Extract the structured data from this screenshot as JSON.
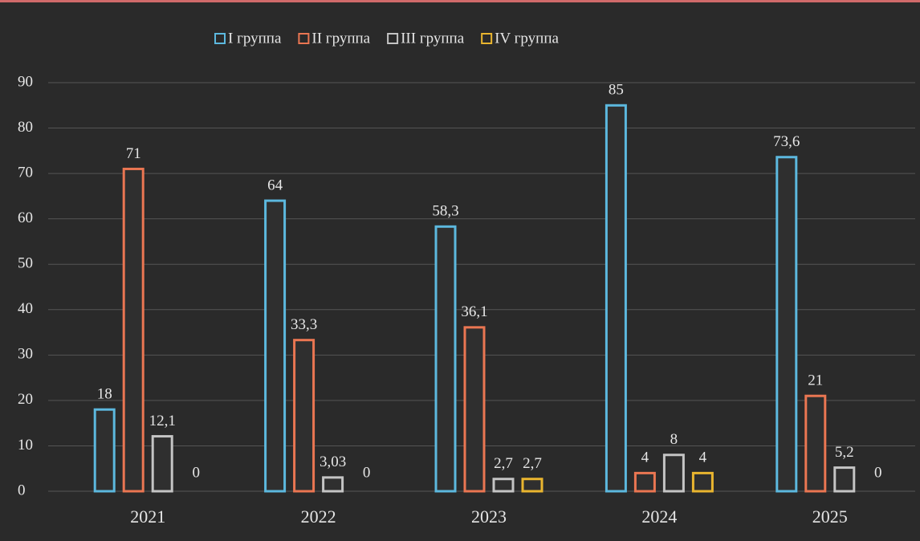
{
  "chart_data": {
    "type": "bar",
    "categories": [
      "2021",
      "2022",
      "2023",
      "2024",
      "2025"
    ],
    "series": [
      {
        "name": "I группа",
        "color": "#5cb8de",
        "values": [
          18,
          64,
          58.3,
          85,
          73.6
        ],
        "value_labels": [
          "18",
          "64",
          "58,3",
          "85",
          "73,6"
        ]
      },
      {
        "name": "II группа",
        "color": "#ea7652",
        "values": [
          71,
          33.3,
          36.1,
          4,
          21
        ],
        "value_labels": [
          "71",
          "33,3",
          "36,1",
          "4",
          "21"
        ]
      },
      {
        "name": "III группа",
        "color": "#c4c4c4",
        "values": [
          12.1,
          3.03,
          2.7,
          8,
          5.2
        ],
        "value_labels": [
          "12,1",
          "3,03",
          "2,7",
          "8",
          "5,2"
        ]
      },
      {
        "name": "IV группа",
        "color": "#e9b52f",
        "values": [
          0,
          0,
          2.7,
          4,
          0
        ],
        "value_labels": [
          "0",
          "0",
          "2,7",
          "4",
          "0"
        ]
      }
    ],
    "ylim": [
      0,
      90
    ],
    "yticks": [
      0,
      10,
      20,
      30,
      40,
      50,
      60,
      70,
      80,
      90
    ],
    "grid": true,
    "legend": "top"
  }
}
